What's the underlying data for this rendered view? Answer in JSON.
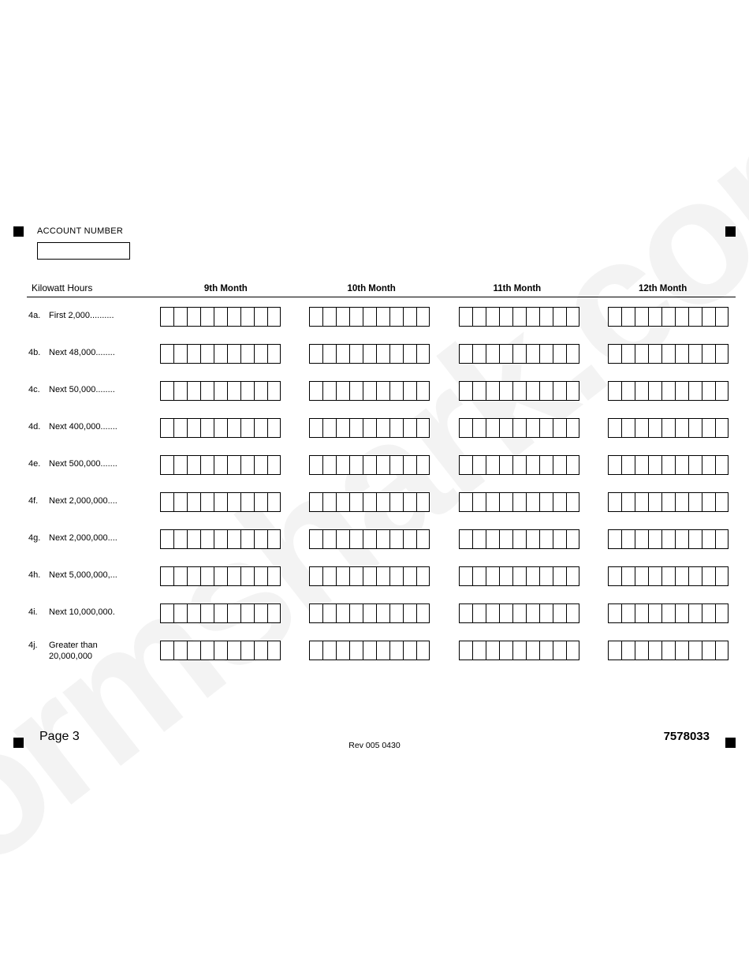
{
  "watermark": "formshark.com",
  "account_label": "ACCOUNT NUMBER",
  "headers": {
    "kwh": "Kilowatt Hours",
    "cols": [
      "9th Month",
      "10th Month",
      "11th Month",
      "12th Month"
    ]
  },
  "rows": [
    {
      "key": "4a.",
      "label": "First 2,000.........."
    },
    {
      "key": "4b.",
      "label": "Next 48,000........"
    },
    {
      "key": "4c.",
      "label": "Next 50,000........"
    },
    {
      "key": "4d.",
      "label": "Next 400,000......."
    },
    {
      "key": "4e.",
      "label": "Next 500,000......."
    },
    {
      "key": "4f.",
      "label": "Next 2,000,000...."
    },
    {
      "key": "4g.",
      "label": "Next 2,000,000...."
    },
    {
      "key": "4h.",
      "label": "Next 5,000,000,..."
    },
    {
      "key": "4i.",
      "label": "Next 10,000,000."
    },
    {
      "key": "4j.",
      "label": "Greater than\n20,000,000"
    }
  ],
  "cells_per_group": 9,
  "footer": {
    "page": "Page 3",
    "rev": "Rev 005 0430",
    "num": "7578033"
  },
  "colors": {
    "background": "#ffffff",
    "ink": "#000000",
    "watermark": "#f3f3f3"
  }
}
